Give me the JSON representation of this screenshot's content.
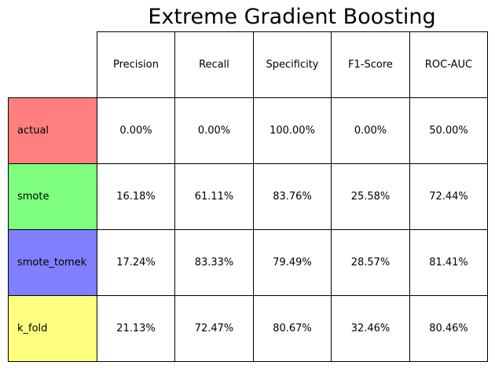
{
  "chart_data": {
    "type": "table",
    "title": "Extreme Gradient Boosting",
    "columns": [
      "Precision",
      "Recall",
      "Specificity",
      "F1-Score",
      "ROC-AUC"
    ],
    "rows": [
      {
        "label": "actual",
        "color": "#ff7f7f",
        "values": [
          "0.00%",
          "0.00%",
          "100.00%",
          "0.00%",
          "50.00%"
        ]
      },
      {
        "label": "smote",
        "color": "#7fff7f",
        "values": [
          "16.18%",
          "61.11%",
          "83.76%",
          "25.58%",
          "72.44%"
        ]
      },
      {
        "label": "smote_tomek",
        "color": "#7f7fff",
        "values": [
          "17.24%",
          "83.33%",
          "79.49%",
          "28.57%",
          "81.41%"
        ]
      },
      {
        "label": "k_fold",
        "color": "#ffff7f",
        "values": [
          "21.13%",
          "72.47%",
          "80.67%",
          "32.46%",
          "80.46%"
        ]
      }
    ]
  }
}
